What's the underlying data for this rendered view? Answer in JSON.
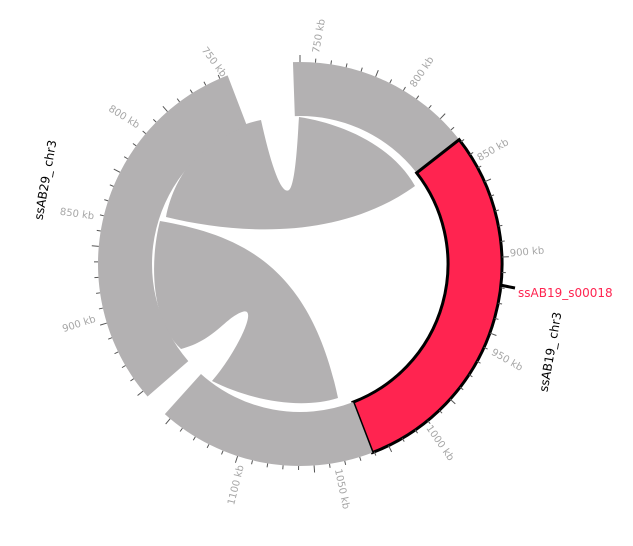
{
  "figure": {
    "sequences": [
      {
        "name": "ssAB29_chr3",
        "label": "ssAB29_ chr3",
        "color": "#b3b1b2",
        "tick_labels": [
          "750 kb",
          "800 kb",
          "850 kb",
          "900 kb"
        ]
      },
      {
        "name": "ssAB19_chr3",
        "label": "ssAB19_ chr3",
        "tick_labels": [
          "750 kb",
          "800 kb",
          "850 kb",
          "900 kb",
          "950 kb",
          "1000 kb",
          "1050 kb",
          "1100 kb"
        ],
        "segments": [
          {
            "name": "grey-top",
            "color": "#b3b1b2"
          },
          {
            "name": "highlight",
            "color": "#ff2450",
            "outline": "#000000"
          },
          {
            "name": "grey-bottom",
            "color": "#b3b1b2"
          }
        ]
      }
    ],
    "gene_marker": {
      "label": "ssAB19_s00018",
      "color": "#ff2450"
    },
    "link_color": "#b3b1b2"
  }
}
